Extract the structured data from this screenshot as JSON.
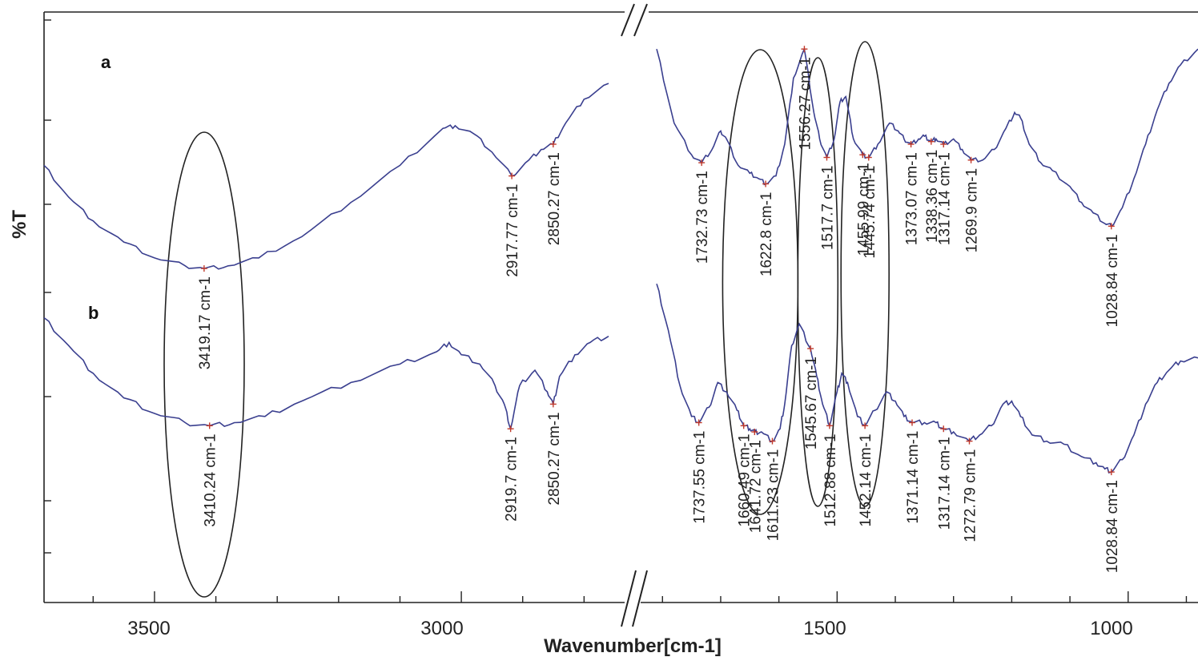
{
  "chart_data": {
    "type": "line",
    "xlabel": "Wavenumber[cm-1]",
    "ylabel": "%T",
    "x_axis": "reversed, broken",
    "x_segments": [
      {
        "xlim": [
          3680,
          2760
        ],
        "ticks": [
          3500,
          3000
        ]
      },
      {
        "xlim": [
          1810,
          880
        ],
        "ticks": [
          1500,
          1000
        ]
      }
    ],
    "tick_labels": [
      "3500",
      "3000",
      "1500",
      "1000"
    ],
    "break_mark": "//",
    "grid": false,
    "series": [
      {
        "name": "a",
        "high": [
          [
            3680,
            0.42
          ],
          [
            3640,
            0.3
          ],
          [
            3600,
            0.21
          ],
          [
            3550,
            0.13
          ],
          [
            3500,
            0.07
          ],
          [
            3450,
            0.04
          ],
          [
            3419.17,
            0.03
          ],
          [
            3380,
            0.04
          ],
          [
            3330,
            0.07
          ],
          [
            3260,
            0.15
          ],
          [
            3180,
            0.28
          ],
          [
            3100,
            0.42
          ],
          [
            3030,
            0.56
          ],
          [
            3010,
            0.57
          ],
          [
            2980,
            0.54
          ],
          [
            2950,
            0.47
          ],
          [
            2917.77,
            0.38
          ],
          [
            2890,
            0.44
          ],
          [
            2870,
            0.48
          ],
          [
            2850.27,
            0.5
          ],
          [
            2830,
            0.58
          ],
          [
            2800,
            0.67
          ],
          [
            2760,
            0.73
          ]
        ],
        "low": [
          [
            1810,
            0.86
          ],
          [
            1780,
            0.58
          ],
          [
            1750,
            0.46
          ],
          [
            1732.73,
            0.43
          ],
          [
            1715,
            0.48
          ],
          [
            1700,
            0.55
          ],
          [
            1690,
            0.52
          ],
          [
            1670,
            0.42
          ],
          [
            1650,
            0.39
          ],
          [
            1635,
            0.37
          ],
          [
            1622.8,
            0.35
          ],
          [
            1605,
            0.38
          ],
          [
            1590,
            0.5
          ],
          [
            1575,
            0.75
          ],
          [
            1556.27,
            0.86
          ],
          [
            1540,
            0.62
          ],
          [
            1530,
            0.52
          ],
          [
            1517.7,
            0.45
          ],
          [
            1505,
            0.52
          ],
          [
            1495,
            0.66
          ],
          [
            1485,
            0.68
          ],
          [
            1472,
            0.52
          ],
          [
            1455.99,
            0.46
          ],
          [
            1445.74,
            0.45
          ],
          [
            1430,
            0.5
          ],
          [
            1410,
            0.58
          ],
          [
            1395,
            0.55
          ],
          [
            1385,
            0.52
          ],
          [
            1373.07,
            0.5
          ],
          [
            1360,
            0.52
          ],
          [
            1350,
            0.53
          ],
          [
            1338.36,
            0.51
          ],
          [
            1330,
            0.52
          ],
          [
            1317.14,
            0.5
          ],
          [
            1300,
            0.52
          ],
          [
            1285,
            0.48
          ],
          [
            1269.9,
            0.44
          ],
          [
            1250,
            0.44
          ],
          [
            1230,
            0.48
          ],
          [
            1210,
            0.56
          ],
          [
            1195,
            0.62
          ],
          [
            1185,
            0.6
          ],
          [
            1170,
            0.5
          ],
          [
            1150,
            0.43
          ],
          [
            1130,
            0.4
          ],
          [
            1100,
            0.34
          ],
          [
            1080,
            0.28
          ],
          [
            1060,
            0.24
          ],
          [
            1040,
            0.2
          ],
          [
            1028.84,
            0.19
          ],
          [
            1010,
            0.26
          ],
          [
            990,
            0.37
          ],
          [
            970,
            0.5
          ],
          [
            950,
            0.63
          ],
          [
            930,
            0.73
          ],
          [
            910,
            0.8
          ],
          [
            880,
            0.86
          ]
        ],
        "peak_labels": [
          "3419.17 cm-1",
          "2917.77 cm-1",
          "2850.27 cm-1",
          "1732.73 cm-1",
          "1622.8 cm-1",
          "1556.27 cm-1",
          "1517.7 cm-1",
          "1455.99 cm-1",
          "1445.74 cm-1",
          "1373.07 cm-1",
          "1338.36 cm-1",
          "1317.14 cm-1",
          "1269.9 cm-1",
          "1028.84 cm-1"
        ]
      },
      {
        "name": "b",
        "high": [
          [
            3680,
            0.84
          ],
          [
            3640,
            0.75
          ],
          [
            3600,
            0.66
          ],
          [
            3550,
            0.58
          ],
          [
            3500,
            0.53
          ],
          [
            3450,
            0.5
          ],
          [
            3410.24,
            0.49
          ],
          [
            3370,
            0.5
          ],
          [
            3320,
            0.52
          ],
          [
            3260,
            0.57
          ],
          [
            3180,
            0.63
          ],
          [
            3100,
            0.69
          ],
          [
            3040,
            0.73
          ],
          [
            3020,
            0.76
          ],
          [
            3000,
            0.72
          ],
          [
            2970,
            0.69
          ],
          [
            2945,
            0.62
          ],
          [
            2930,
            0.56
          ],
          [
            2919.7,
            0.48
          ],
          [
            2905,
            0.62
          ],
          [
            2880,
            0.67
          ],
          [
            2860,
            0.6
          ],
          [
            2850.27,
            0.56
          ],
          [
            2840,
            0.65
          ],
          [
            2815,
            0.72
          ],
          [
            2790,
            0.76
          ],
          [
            2760,
            0.78
          ]
        ],
        "low": [
          [
            1810,
            0.95
          ],
          [
            1790,
            0.8
          ],
          [
            1770,
            0.62
          ],
          [
            1750,
            0.52
          ],
          [
            1737.55,
            0.5
          ],
          [
            1720,
            0.55
          ],
          [
            1705,
            0.63
          ],
          [
            1690,
            0.6
          ],
          [
            1672,
            0.54
          ],
          [
            1660.49,
            0.49
          ],
          [
            1650,
            0.48
          ],
          [
            1641.72,
            0.47
          ],
          [
            1630,
            0.47
          ],
          [
            1611.23,
            0.44
          ],
          [
            1598,
            0.48
          ],
          [
            1590,
            0.56
          ],
          [
            1578,
            0.75
          ],
          [
            1565,
            0.82
          ],
          [
            1545.67,
            0.74
          ],
          [
            1535,
            0.65
          ],
          [
            1525,
            0.56
          ],
          [
            1512.88,
            0.49
          ],
          [
            1500,
            0.6
          ],
          [
            1492,
            0.66
          ],
          [
            1482,
            0.63
          ],
          [
            1465,
            0.52
          ],
          [
            1452.14,
            0.49
          ],
          [
            1435,
            0.54
          ],
          [
            1415,
            0.6
          ],
          [
            1400,
            0.57
          ],
          [
            1385,
            0.52
          ],
          [
            1371.14,
            0.5
          ],
          [
            1350,
            0.5
          ],
          [
            1330,
            0.5
          ],
          [
            1317.14,
            0.48
          ],
          [
            1300,
            0.47
          ],
          [
            1272.79,
            0.44
          ],
          [
            1255,
            0.46
          ],
          [
            1235,
            0.49
          ],
          [
            1215,
            0.56
          ],
          [
            1200,
            0.57
          ],
          [
            1185,
            0.52
          ],
          [
            1165,
            0.46
          ],
          [
            1140,
            0.44
          ],
          [
            1110,
            0.43
          ],
          [
            1080,
            0.39
          ],
          [
            1055,
            0.37
          ],
          [
            1040,
            0.35
          ],
          [
            1028.84,
            0.34
          ],
          [
            1010,
            0.38
          ],
          [
            990,
            0.46
          ],
          [
            970,
            0.56
          ],
          [
            950,
            0.63
          ],
          [
            930,
            0.67
          ],
          [
            910,
            0.7
          ],
          [
            880,
            0.71
          ]
        ],
        "peak_labels": [
          "3410.24 cm-1",
          "2919.7 cm-1",
          "2850.27 cm-1",
          "1737.55 cm-1",
          "1660.49 cm-1",
          "1641.72 cm-1",
          "1611.23 cm-1",
          "1545.67 cm-1",
          "1512.88 cm-1",
          "1452.14 cm-1",
          "1371.14 cm-1",
          "1317.14 cm-1",
          "1272.79 cm-1",
          "1028.84 cm-1"
        ]
      }
    ],
    "ellipses": [
      {
        "x_center": 3419
      },
      {
        "x_center": 1632
      },
      {
        "x_center": 1533
      },
      {
        "x_center": 1452
      }
    ]
  }
}
